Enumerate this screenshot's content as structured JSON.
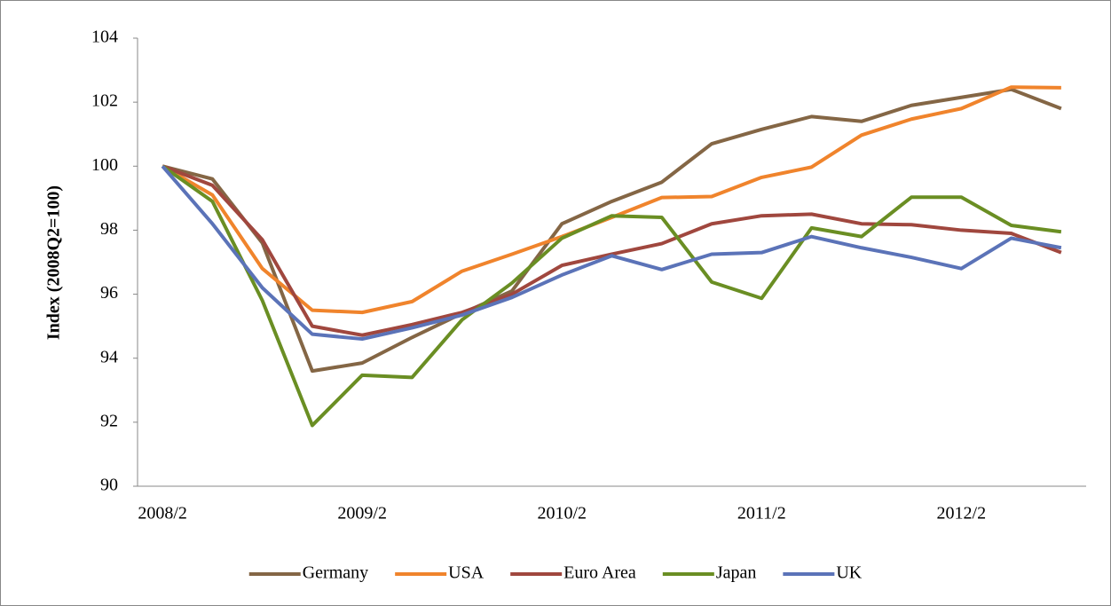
{
  "chart_data": {
    "type": "line",
    "y_label": "Index (2008Q2=100)",
    "categories": [
      "2008/2",
      null,
      null,
      null,
      "2009/2",
      null,
      null,
      null,
      "2010/2",
      null,
      null,
      null,
      "2011/2",
      null,
      null,
      null,
      "2012/2",
      null,
      null
    ],
    "series": [
      {
        "name": "Germany",
        "color": "#846645",
        "values": [
          100,
          99.6,
          97.6,
          93.6,
          93.85,
          94.65,
          95.4,
          96.1,
          98.2,
          98.9,
          99.5,
          100.7,
          101.15,
          101.55,
          101.4,
          101.9,
          102.15,
          102.4,
          101.8
        ]
      },
      {
        "name": "USA",
        "color": "#f0842c",
        "values": [
          100,
          99.1,
          96.8,
          95.5,
          95.43,
          95.77,
          96.72,
          97.25,
          97.8,
          98.4,
          99.02,
          99.05,
          99.65,
          99.97,
          100.97,
          101.47,
          101.8,
          102.47,
          102.45
        ]
      },
      {
        "name": "Euro Area",
        "color": "#a0473e",
        "values": [
          100,
          99.4,
          97.7,
          95.0,
          94.72,
          95.05,
          95.43,
          96.0,
          96.9,
          97.25,
          97.58,
          98.2,
          98.45,
          98.5,
          98.2,
          98.17,
          98.0,
          97.9,
          97.3
        ]
      },
      {
        "name": "Japan",
        "color": "#6a8e23",
        "values": [
          100,
          98.9,
          95.8,
          91.9,
          93.47,
          93.4,
          95.2,
          96.35,
          97.75,
          98.45,
          98.4,
          96.38,
          95.87,
          98.07,
          97.8,
          99.03,
          99.03,
          98.15,
          97.95
        ]
      },
      {
        "name": "UK",
        "color": "#5b73b8",
        "values": [
          100,
          98.2,
          96.2,
          94.75,
          94.6,
          94.95,
          95.35,
          95.9,
          96.6,
          97.2,
          96.77,
          97.25,
          97.3,
          97.8,
          97.45,
          97.15,
          96.8,
          97.75,
          97.45
        ]
      }
    ],
    "ylim": [
      90,
      104
    ],
    "yticks": [
      90,
      92,
      94,
      96,
      98,
      100,
      102,
      104
    ],
    "grid": false,
    "legend": "bottom"
  }
}
